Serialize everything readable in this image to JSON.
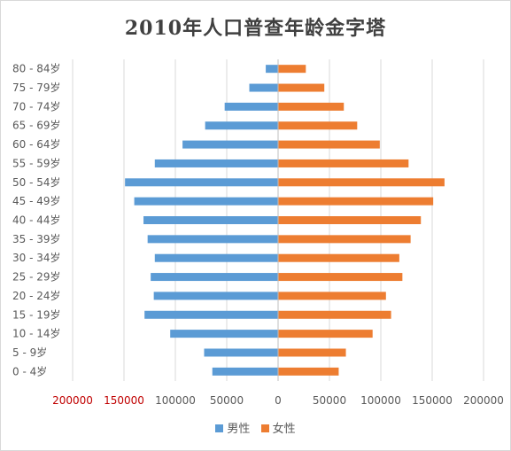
{
  "chart_data": {
    "type": "bar",
    "orientation": "horizontal",
    "title": "2010年人口普查年龄金字塔",
    "categories": [
      "80 - 84岁",
      "75 - 79岁",
      "70 - 74岁",
      "65 - 69岁",
      "60 - 64岁",
      "55 - 59岁",
      "50 - 54岁",
      "45 - 49岁",
      "40 - 44岁",
      "35 - 39岁",
      "30 - 34岁",
      "25 - 29岁",
      "20 - 24岁",
      "15 - 19岁",
      "10 - 14岁",
      "5 - 9岁",
      "0 - 4岁"
    ],
    "series": [
      {
        "name": "男性",
        "color": "#5b9bd5",
        "values": [
          12000,
          28000,
          52000,
          71000,
          93000,
          120000,
          149000,
          140000,
          131000,
          127000,
          120000,
          124000,
          121000,
          130000,
          105000,
          72000,
          64000
        ]
      },
      {
        "name": "女性",
        "color": "#ed7d31",
        "values": [
          27000,
          45000,
          64000,
          77000,
          99000,
          127000,
          162000,
          151000,
          139000,
          129000,
          118000,
          121000,
          105000,
          110000,
          92000,
          66000,
          59000
        ]
      }
    ],
    "x_ticks": [
      "200000",
      "150000",
      "100000",
      "50000",
      "0",
      "50000",
      "100000",
      "150000",
      "200000"
    ],
    "x_tick_colors": [
      "#c00000",
      "#c00000",
      "#595959",
      "#595959",
      "#595959",
      "#595959",
      "#595959",
      "#595959",
      "#595959"
    ],
    "xlim": [
      -200000,
      200000
    ],
    "grid": true,
    "legend_position": "bottom"
  }
}
